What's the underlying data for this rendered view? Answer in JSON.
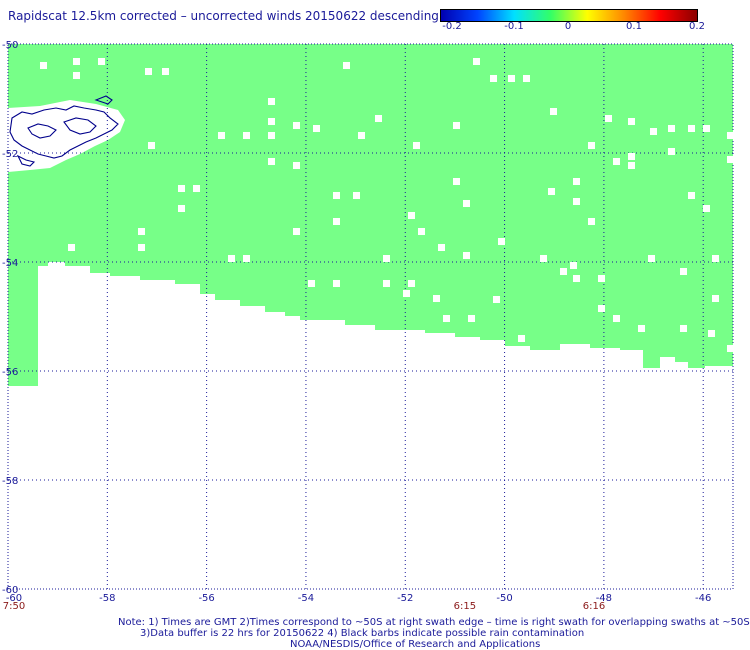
{
  "title": "Rapidscat 12.5km corrected – uncorrected winds 20150622 descending",
  "colorbar": {
    "labels": [
      "-0.2",
      "-0.1",
      "0",
      "0.1",
      "0.2"
    ],
    "colors": [
      "#0000b0",
      "#0044ff",
      "#00e0ff",
      "#33ff66",
      "#ffff00",
      "#ff8800",
      "#ff0000",
      "#8b0000"
    ]
  },
  "axes": {
    "lat_labels": [
      "-50",
      "-52",
      "-54",
      "-56",
      "-58",
      "-60"
    ],
    "lon_labels": [
      "-60",
      "-58",
      "-56",
      "-54",
      "-52",
      "-50",
      "-48",
      "-46"
    ],
    "lat_range": [
      -60,
      -50
    ],
    "lon_range": [
      -60,
      -45.4
    ]
  },
  "times": [
    {
      "label": "7:50",
      "lon": -60
    },
    {
      "label": "6:15",
      "lon": -50.8
    },
    {
      "label": "6:16",
      "lon": -48.2
    }
  ],
  "fill_color": "#77ff88",
  "notes": {
    "line1": "Note: 1) Times are GMT 2)Times correspond to ~50S at right swath edge – time is right swath for overlapping swaths at ~50S",
    "line2": "3)Data buffer is 22 hrs for 20150622 4) Black barbs indicate possible rain contamination",
    "line3": "NOAA/NESDIS/Office of Research and Applications"
  }
}
